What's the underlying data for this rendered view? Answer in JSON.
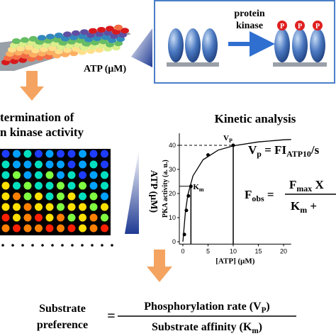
{
  "plate": {
    "axis_label": "ATP (μM)"
  },
  "reaction": {
    "enzyme": [
      "protein",
      "kinase"
    ],
    "phospho_mark": "P"
  },
  "left_heading": [
    "termination of",
    "n kinase activity"
  ],
  "heatmap": {
    "axis_label": "ATP (μM)"
  },
  "kinetic_title": "Kinetic analysis",
  "chart_data": {
    "type": "scatter",
    "y_label": "PKA activity (a. u.)",
    "x_label": "[ATP] (μM)",
    "x": [
      0.3,
      0.7,
      1.1,
      1.6,
      5,
      10
    ],
    "values": [
      3,
      13,
      19,
      23,
      36,
      40
    ],
    "color": "#000000",
    "xlim": [
      -0.7,
      21.5
    ],
    "ylim": [
      -1,
      45
    ],
    "xticks": [
      0,
      5,
      10,
      15,
      20
    ],
    "yticks": [
      0,
      10,
      20,
      30,
      40
    ],
    "annotations": [
      {
        "text": "V",
        "sub": "P"
      },
      {
        "text": "K",
        "sub": "m"
      }
    ]
  },
  "equation_vp": [
    "V",
    "p",
    " = FI",
    "ATP10",
    "/s"
  ],
  "equation_fobs": {
    "lhs": [
      "F",
      "obs",
      " ="
    ],
    "num": [
      "F",
      "max",
      " X"
    ],
    "den": [
      "K",
      "m",
      " +"
    ]
  },
  "bottom": {
    "lhs": [
      "Substrate",
      "preference"
    ],
    "eq": "=",
    "num": [
      "Phosphorylation rate (V",
      "P",
      ")"
    ],
    "den": [
      "Substrate affinity (K",
      "m",
      ")"
    ]
  }
}
